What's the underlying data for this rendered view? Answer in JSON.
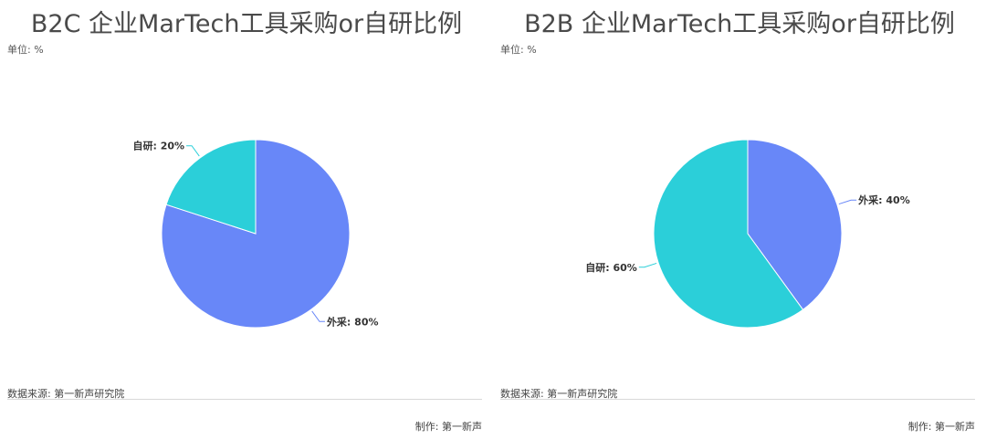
{
  "chart_data": [
    {
      "type": "pie",
      "title": "B2C 企业MarTech工具采购or自研比例",
      "unit_label": "单位: %",
      "slices": [
        {
          "name": "外采",
          "value": 80,
          "label": "外采: 80%",
          "color": "#6887f8"
        },
        {
          "name": "自研",
          "value": 20,
          "label": "自研: 20%",
          "color": "#2bcfd9"
        }
      ],
      "source": "数据来源: 第一新声研究院",
      "credit": "制作: 第一新声"
    },
    {
      "type": "pie",
      "title": "B2B 企业MarTech工具采购or自研比例",
      "unit_label": "单位: %",
      "slices": [
        {
          "name": "外采",
          "value": 40,
          "label": "外采: 40%",
          "color": "#6887f8"
        },
        {
          "name": "自研",
          "value": 60,
          "label": "自研: 60%",
          "color": "#2bcfd9"
        }
      ],
      "source": "数据来源: 第一新声研究院",
      "credit": "制作: 第一新声"
    }
  ]
}
